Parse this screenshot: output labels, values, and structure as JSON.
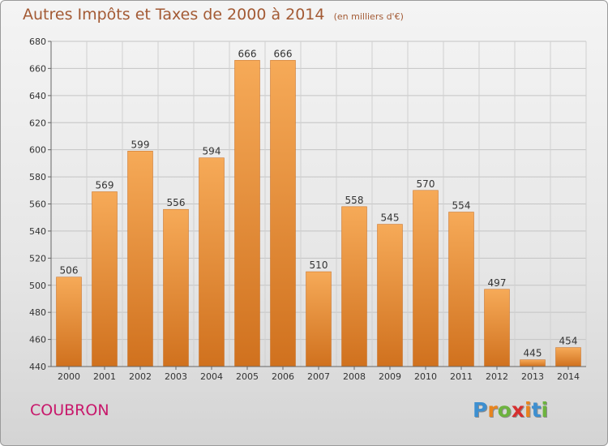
{
  "title": "Autres Impôts et Taxes de 2000 à 2014",
  "subtitle": "(en milliers d'€)",
  "city": "COUBRON",
  "logo": {
    "letters": [
      "P",
      "r",
      "o",
      "x",
      "i",
      "t",
      "i"
    ],
    "colors": [
      "#3d8fd0",
      "#e8841e",
      "#6db33f",
      "#d62f2f",
      "#e8841e",
      "#3d8fd0",
      "#6db33f"
    ]
  },
  "colors": {
    "bar_light": "#f6aa58",
    "bar_dark": "#d0711e",
    "title": "#a35a34",
    "city": "#c8186b"
  },
  "chart_data": {
    "type": "bar",
    "categories": [
      "2000",
      "2001",
      "2002",
      "2003",
      "2004",
      "2005",
      "2006",
      "2007",
      "2008",
      "2009",
      "2010",
      "2011",
      "2012",
      "2013",
      "2014"
    ],
    "values": [
      506,
      569,
      599,
      556,
      594,
      666,
      666,
      510,
      558,
      545,
      570,
      554,
      497,
      445,
      454
    ],
    "ylim": [
      440,
      680
    ],
    "yticks": [
      440,
      460,
      480,
      500,
      520,
      540,
      560,
      580,
      600,
      620,
      640,
      660,
      680
    ],
    "grid": true,
    "data_labels": true
  }
}
